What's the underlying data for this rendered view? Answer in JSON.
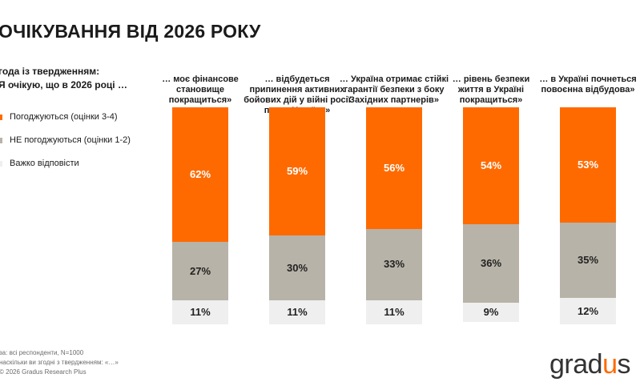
{
  "page": {
    "title": "ОЧІКУВАННЯ ВІД 2026 РОКУ",
    "question_line1": "года із твердженням:",
    "question_line2": "Я очікую, що в 2026 році …",
    "footnote_line1": "за: всі респонденти, N=1000",
    "footnote_line2": "наскільки ви згодні з твердженням: «…»",
    "footnote_line3": "© 2026 Gradus Research Plus",
    "logo_text_part1": "grad",
    "logo_text_accent": "u",
    "logo_text_part2": "s"
  },
  "colors": {
    "agree": "#ff6a00",
    "disagree": "#b8b3a8",
    "hard": "#efefef"
  },
  "chart_data": {
    "type": "bar",
    "stacked": true,
    "normalized_to": 100,
    "title": "ОЧІКУВАННЯ ВІД 2026 РОКУ",
    "categories": [
      "… моє фінансове становище покращиться»",
      "… відбудеться припинення активних бойових дій у війні росії проти України»",
      "… Україна отримає стійкі гарантії безпеки з боку Західних партнерів»",
      "… рівень безпеки життя в Україні покращиться»",
      "… в Україні почнеться повоєнна відбудова»"
    ],
    "category_lines": [
      [
        "… моє фінансове",
        "становище",
        "покращиться»"
      ],
      [
        "… відбудеться",
        "припинення активних",
        "бойових дій у війні росії",
        "проти України»"
      ],
      [
        "… Україна отримає стійкі",
        "гарантії безпеки з боку",
        "Західних партнерів»"
      ],
      [
        "… рівень безпеки",
        "життя в Україні",
        "покращиться»"
      ],
      [
        "… в Україні почнеться",
        "повоєнна відбудова»"
      ]
    ],
    "series": [
      {
        "name": "Погоджуються (оцінки 3-4)",
        "values": [
          62,
          59,
          56,
          54,
          53
        ],
        "labels": [
          "62%",
          "59%",
          "56%",
          "54%",
          "53%"
        ]
      },
      {
        "name": "НЕ погоджуються (оцінки 1-2)",
        "values": [
          27,
          30,
          33,
          36,
          35
        ],
        "labels": [
          "27%",
          "30%",
          "33%",
          "36%",
          "35%"
        ]
      },
      {
        "name": "Важко відповісти",
        "values": [
          11,
          11,
          11,
          9,
          12
        ],
        "labels": [
          "11%",
          "11%",
          "11%",
          "9%",
          "12%"
        ]
      }
    ],
    "legend_position": "left"
  }
}
